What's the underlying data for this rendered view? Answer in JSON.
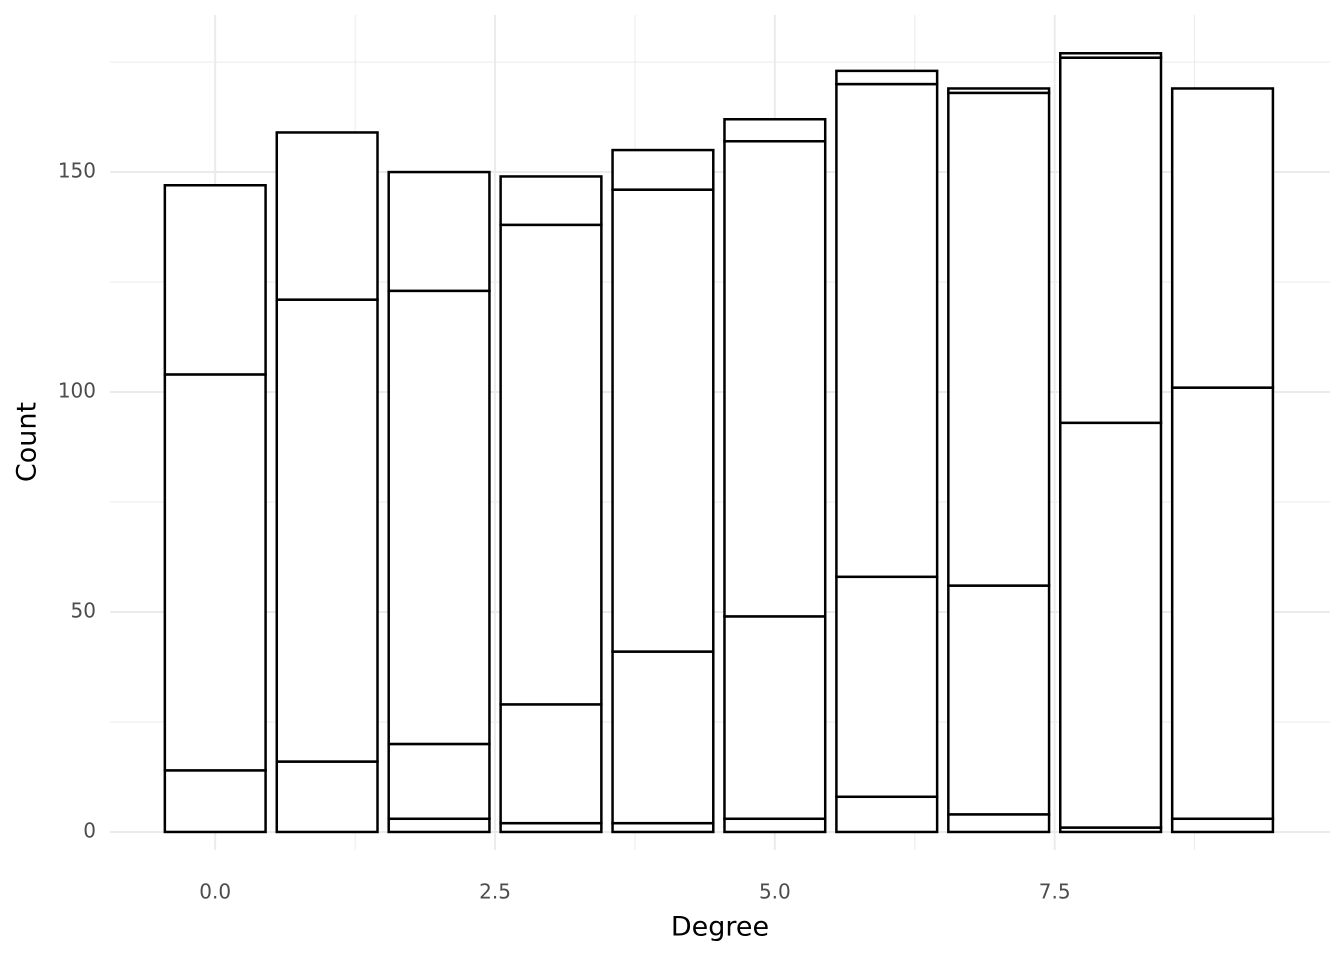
{
  "chart_data": {
    "type": "stacked_bar",
    "xlabel": "Degree",
    "ylabel": "Count",
    "x": [
      0,
      1,
      2,
      3,
      4,
      5,
      6,
      7,
      8,
      9
    ],
    "series": [
      {
        "color": "#ffffff",
        "values": [
          0,
          0,
          3,
          2,
          2,
          3,
          8,
          4,
          1,
          3
        ]
      },
      {
        "color": "#ffffff",
        "values": [
          14,
          16,
          17,
          27,
          39,
          46,
          50,
          52,
          92,
          98
        ]
      },
      {
        "color": "#ffffff",
        "values": [
          90,
          105,
          103,
          109,
          105,
          108,
          112,
          112,
          83,
          68
        ]
      },
      {
        "color": "#ffffff",
        "values": [
          43,
          38,
          27,
          11,
          9,
          5,
          3,
          1,
          1,
          0
        ]
      }
    ],
    "outline": "#000000",
    "xlim": [
      -0.94,
      9.96
    ],
    "ylim": [
      -4.1,
      185.7
    ],
    "xticks": [
      {
        "value": 0,
        "label": "0.0"
      },
      2.5,
      {
        "value": 5,
        "label": "5.0"
      },
      7.5
    ],
    "yticks": [
      0,
      50,
      100,
      150
    ],
    "xminorticks": [
      1.25,
      3.75,
      6.25,
      8.75
    ],
    "yminorticks": [
      25,
      75,
      125,
      175
    ],
    "grid": true
  }
}
